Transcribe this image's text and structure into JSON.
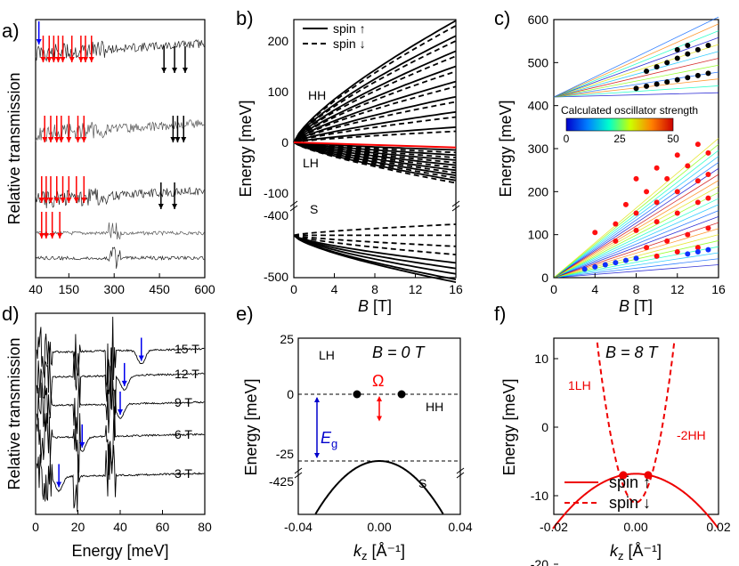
{
  "panels": {
    "a": {
      "label": "a)",
      "ylabel": "Relative transmission",
      "xticks": [
        "40",
        "150",
        "300",
        "450",
        "600"
      ]
    },
    "b": {
      "label": "b)",
      "ylabel": "Energy [meV]",
      "xlabel_var": "B",
      "xlabel_unit": " [T]",
      "yticks_top": [
        "0",
        "100",
        "200"
      ],
      "yticks_top_neg": "-100",
      "yticks_bottom": [
        "-400",
        "-500"
      ],
      "xticks": [
        "0",
        "4",
        "8",
        "12",
        "16"
      ],
      "band_labels": [
        "HH",
        "LH",
        "S"
      ],
      "legend": [
        {
          "label": "spin ↑",
          "style": "solid"
        },
        {
          "label": "spin ↓",
          "style": "dashed"
        }
      ]
    },
    "c": {
      "label": "c)",
      "ylabel": "Energy [meV]",
      "xlabel_var": "B",
      "xlabel_unit": " [T]",
      "yticks": [
        "0",
        "100",
        "200",
        "300",
        "400",
        "500",
        "600"
      ],
      "xticks": [
        "0",
        "4",
        "8",
        "12",
        "16"
      ],
      "colorbar_title": "Calculated oscillator strength",
      "colorbar_ticks": [
        "0",
        "25",
        "50"
      ]
    },
    "d": {
      "label": "d)",
      "ylabel": "Relative transmission",
      "xlabel": "Energy [meV]",
      "xticks": [
        "0",
        "20",
        "40",
        "60",
        "80"
      ],
      "field_labels": [
        "15 T",
        "12 T",
        "9 T",
        "6 T",
        "3 T"
      ]
    },
    "e": {
      "label": "e)",
      "ylabel": "Energy [meV]",
      "xlabel_var": "k",
      "xlabel_sub": "z",
      "xlabel_unit": " [Å⁻¹]",
      "title": "B = 0 T",
      "yticks": [
        "25",
        "0",
        "-25",
        "-425"
      ],
      "xticks": [
        "-0.04",
        "0.00",
        "0.04"
      ],
      "band_labels": [
        "LH",
        "HH",
        "S"
      ],
      "omega": "Ω",
      "eg": "E",
      "eg_sub": "g"
    },
    "f": {
      "label": "f)",
      "ylabel": "Energy [meV]",
      "xlabel_var": "k",
      "xlabel_sub": "z",
      "xlabel_unit": " [Å⁻¹]",
      "title": "B = 8 T",
      "yticks": [
        "10",
        "0",
        "-10",
        "-20"
      ],
      "xticks": [
        "-0.02",
        "0.00",
        "0.02"
      ],
      "band_labels": [
        "1LH",
        "-2HH"
      ],
      "legend": [
        {
          "label": "spin ↑",
          "style": "solid"
        },
        {
          "label": "spin ↓",
          "style": "dashed"
        }
      ]
    }
  },
  "chart_data": [
    {
      "type": "line",
      "panel": "a",
      "xlabel": "",
      "ylabel": "Relative transmission",
      "xlim": [
        40,
        600
      ],
      "series_count": 5,
      "arrow_colors": [
        "#0000ff",
        "#ff0000",
        "#000000"
      ],
      "red_arrows_x": [
        [
          65,
          85,
          100,
          115,
          130,
          160,
          190,
          205,
          225
        ],
        [
          70,
          90,
          110,
          125,
          150,
          180,
          200
        ],
        [
          60,
          75,
          90,
          110,
          130,
          150,
          175,
          200
        ],
        [
          60,
          75,
          95,
          120
        ]
      ],
      "black_arrows_x": [
        [
          465,
          500,
          535
        ],
        [
          495,
          510,
          530
        ],
        [
          455,
          500
        ]
      ],
      "blue_arrows_x": [
        42
      ]
    },
    {
      "type": "line",
      "panel": "b",
      "xlabel": "B [T]",
      "ylabel": "Energy [meV]",
      "xlim": [
        0,
        16
      ],
      "ylim_top": [
        -100,
        250
      ],
      "ylim_bottom": [
        -500,
        -390
      ],
      "hh_end_up": [
        240,
        210,
        180,
        150,
        120,
        90,
        60,
        30
      ],
      "hh_end_down": [
        230,
        200,
        170,
        140,
        110,
        80,
        50,
        22
      ],
      "lh_end_up": [
        -15,
        -25,
        -35,
        -45,
        -55,
        -65,
        -75
      ],
      "lh_end_down": [
        -20,
        -30,
        -40,
        -50,
        -60,
        -70,
        -80
      ],
      "red_line": [
        [
          0,
          0
        ],
        [
          16,
          -10
        ]
      ],
      "s_end_up": [
        -470,
        -480,
        -490,
        -500,
        -505
      ],
      "s_end_down": [
        -400,
        -420,
        -440,
        -455
      ]
    },
    {
      "type": "scatter",
      "panel": "c",
      "xlabel": "B [T]",
      "ylabel": "Energy [meV]",
      "xlim": [
        0,
        16
      ],
      "ylim": [
        0,
        600
      ],
      "red_points": [
        [
          4,
          105
        ],
        [
          6,
          125
        ],
        [
          8,
          150
        ],
        [
          10,
          175
        ],
        [
          12,
          200
        ],
        [
          14,
          225
        ],
        [
          15,
          240
        ],
        [
          7,
          170
        ],
        [
          9,
          200
        ],
        [
          11,
          230
        ],
        [
          13,
          260
        ],
        [
          15,
          290
        ],
        [
          8,
          230
        ],
        [
          10,
          255
        ],
        [
          12,
          285
        ],
        [
          14,
          310
        ],
        [
          6,
          85
        ],
        [
          8,
          110
        ],
        [
          10,
          130
        ],
        [
          12,
          150
        ],
        [
          14,
          175
        ],
        [
          15,
          185
        ],
        [
          9,
          70
        ],
        [
          11,
          85
        ],
        [
          13,
          100
        ],
        [
          15,
          115
        ],
        [
          10,
          50
        ],
        [
          12,
          60
        ],
        [
          14,
          70
        ]
      ],
      "blue_points": [
        [
          3,
          20
        ],
        [
          4,
          25
        ],
        [
          5,
          30
        ],
        [
          6,
          35
        ],
        [
          7,
          40
        ],
        [
          8,
          45
        ],
        [
          13,
          55
        ],
        [
          14,
          60
        ],
        [
          15,
          65
        ]
      ],
      "black_points": [
        [
          8,
          440
        ],
        [
          9,
          445
        ],
        [
          10,
          450
        ],
        [
          11,
          455
        ],
        [
          12,
          460
        ],
        [
          13,
          465
        ],
        [
          14,
          470
        ],
        [
          15,
          475
        ],
        [
          9,
          480
        ],
        [
          10,
          490
        ],
        [
          11,
          500
        ],
        [
          12,
          510
        ],
        [
          13,
          520
        ],
        [
          14,
          530
        ],
        [
          15,
          540
        ],
        [
          12,
          530
        ],
        [
          13,
          540
        ]
      ]
    },
    {
      "type": "line",
      "panel": "d",
      "xlabel": "Energy [meV]",
      "ylabel": "Relative transmission",
      "xlim": [
        0,
        80
      ],
      "series": [
        {
          "name": "15 T",
          "dip_x": 50
        },
        {
          "name": "12 T",
          "dip_x": 42
        },
        {
          "name": "9 T",
          "dip_x": 40
        },
        {
          "name": "6 T",
          "dip_x": 22
        },
        {
          "name": "3 T",
          "dip_x": 11
        }
      ]
    },
    {
      "type": "line",
      "panel": "e",
      "xlabel": "kz [Å⁻¹]",
      "ylabel": "Energy [meV]",
      "xlim": [
        -0.04,
        0.04
      ],
      "crossing_points": [
        [
          -0.011,
          0
        ],
        [
          0.011,
          0
        ]
      ],
      "omega_meV": -13
    },
    {
      "type": "line",
      "panel": "f",
      "xlabel": "kz [Å⁻¹]",
      "ylabel": "Energy [meV]",
      "xlim": [
        -0.02,
        0.02
      ],
      "ylim": [
        -25,
        13
      ],
      "crossing_points": [
        [
          -0.003,
          -7
        ],
        [
          0.003,
          -7
        ]
      ]
    }
  ]
}
